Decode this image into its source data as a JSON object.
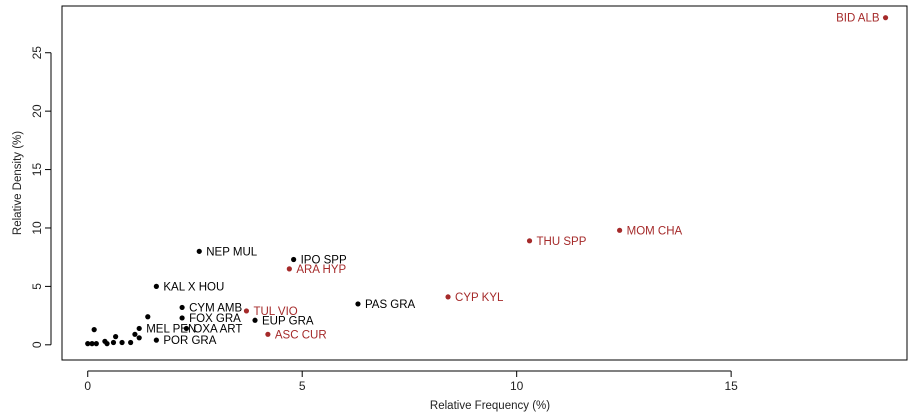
{
  "chart_data": {
    "type": "scatter",
    "title": "",
    "xlabel": "Relative Frequency (%)",
    "ylabel": "Relative Density (%)",
    "xlim": [
      -0.6,
      19.1
    ],
    "ylim": [
      -1.3,
      29.0
    ],
    "x_ticks": [
      0,
      5,
      10,
      15
    ],
    "y_ticks": [
      0,
      5,
      10,
      15,
      20,
      25
    ],
    "grid": false,
    "colors": {
      "default": "#000000",
      "highlight": "#A52A2A"
    },
    "points": [
      {
        "x": 18.6,
        "y": 28.0,
        "label": "BID ALB",
        "color": "highlight"
      },
      {
        "x": 12.4,
        "y": 9.8,
        "label": "MOM CHA",
        "color": "highlight"
      },
      {
        "x": 10.3,
        "y": 8.9,
        "label": "THU SPP",
        "color": "highlight"
      },
      {
        "x": 8.4,
        "y": 4.1,
        "label": "CYP KYL",
        "color": "highlight"
      },
      {
        "x": 6.3,
        "y": 3.5,
        "label": "PAS GRA",
        "color": "default"
      },
      {
        "x": 4.8,
        "y": 7.3,
        "label": "IPO SPP",
        "color": "default"
      },
      {
        "x": 4.7,
        "y": 6.5,
        "label": "ARA HYP",
        "color": "highlight"
      },
      {
        "x": 2.6,
        "y": 8.0,
        "label": "NEP MUL",
        "color": "default"
      },
      {
        "x": 1.6,
        "y": 5.0,
        "label": "KAL X HOU",
        "color": "default"
      },
      {
        "x": 2.2,
        "y": 3.2,
        "label": "CYM AMB",
        "color": "default"
      },
      {
        "x": 3.7,
        "y": 2.9,
        "label": "TUL VIO",
        "color": "highlight"
      },
      {
        "x": 2.2,
        "y": 2.3,
        "label": "FOX GRA",
        "color": "default"
      },
      {
        "x": 3.9,
        "y": 2.1,
        "label": "EUP GRA",
        "color": "default"
      },
      {
        "x": 2.3,
        "y": 1.4,
        "label": "OXA ART",
        "color": "default"
      },
      {
        "x": 1.2,
        "y": 1.4,
        "label": "MEL PEN",
        "color": "default"
      },
      {
        "x": 4.2,
        "y": 0.9,
        "label": "ASC CUR",
        "color": "highlight"
      },
      {
        "x": 1.6,
        "y": 0.4,
        "label": "POR GRA",
        "color": "default"
      },
      {
        "x": 1.4,
        "y": 2.4,
        "label": "",
        "color": "default"
      },
      {
        "x": 0.15,
        "y": 1.3,
        "label": "",
        "color": "default"
      },
      {
        "x": 0.0,
        "y": 0.1,
        "label": "",
        "color": "default"
      },
      {
        "x": 0.1,
        "y": 0.1,
        "label": "",
        "color": "default"
      },
      {
        "x": 0.2,
        "y": 0.1,
        "label": "",
        "color": "default"
      },
      {
        "x": 0.4,
        "y": 0.3,
        "label": "",
        "color": "default"
      },
      {
        "x": 0.45,
        "y": 0.1,
        "label": "",
        "color": "default"
      },
      {
        "x": 0.6,
        "y": 0.2,
        "label": "",
        "color": "default"
      },
      {
        "x": 0.65,
        "y": 0.7,
        "label": "",
        "color": "default"
      },
      {
        "x": 0.8,
        "y": 0.2,
        "label": "",
        "color": "default"
      },
      {
        "x": 1.0,
        "y": 0.2,
        "label": "",
        "color": "default"
      },
      {
        "x": 1.1,
        "y": 0.9,
        "label": "",
        "color": "default"
      },
      {
        "x": 1.2,
        "y": 0.6,
        "label": "",
        "color": "default"
      }
    ]
  }
}
